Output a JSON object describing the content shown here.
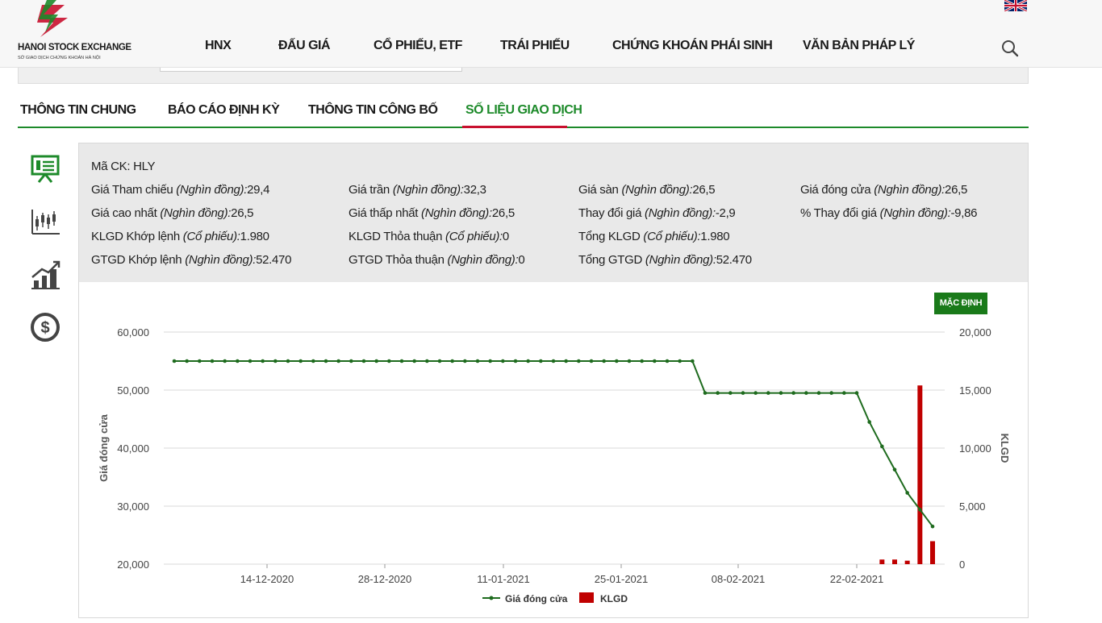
{
  "header": {
    "logo_name": "HANOI STOCK EXCHANGE",
    "logo_sub": "SỞ GIAO DỊCH CHỨNG KHOÁN HÀ NỘI",
    "nav": [
      "HNX",
      "ĐẤU GIÁ",
      "CỔ PHIẾU, ETF",
      "TRÁI PHIẾU",
      "CHỨNG KHOÁN PHÁI SINH",
      "VĂN BẢN PHÁP LÝ"
    ],
    "active_nav": "TRÁI PHIẾU",
    "language_flag": "uk-flag-icon",
    "search_icon": "search-icon"
  },
  "tabs": {
    "items": [
      "THÔNG TIN CHUNG",
      "BÁO CÁO ĐỊNH KỲ",
      "THÔNG TIN CÔNG BỐ",
      "SỐ LIỆU GIAO DỊCH"
    ],
    "active": "SỐ LIỆU GIAO DỊCH"
  },
  "side_icons": [
    "presentation-chart-icon",
    "candlestick-chart-icon",
    "bar-growth-chart-icon",
    "dollar-coin-icon"
  ],
  "info": {
    "ticker_label": "Mã CK:",
    "ticker": "HLY",
    "fields": [
      {
        "label": "Giá Tham chiếu",
        "unit": "(Nghìn đồng):",
        "value": "29,4"
      },
      {
        "label": "Giá trần",
        "unit": "(Nghìn đồng):",
        "value": "32,3"
      },
      {
        "label": "Giá sàn",
        "unit": "(Nghìn đồng):",
        "value": "26,5"
      },
      {
        "label": "Giá đóng cửa",
        "unit": "(Nghìn đồng):",
        "value": "26,5"
      },
      {
        "label": "Giá cao nhất",
        "unit": "(Nghìn đồng):",
        "value": "26,5"
      },
      {
        "label": "Giá thấp nhất",
        "unit": "(Nghìn đồng):",
        "value": "26,5"
      },
      {
        "label": "Thay đổi giá",
        "unit": "(Nghìn đồng):",
        "value": "-2,9"
      },
      {
        "label": "% Thay đổi giá",
        "unit": "(Nghìn đồng):",
        "value": "-9,86"
      },
      {
        "label": "KLGD Khớp lệnh",
        "unit": "(Cổ phiếu):",
        "value": "1.980"
      },
      {
        "label": "KLGD Thỏa thuận",
        "unit": "(Cổ phiếu):",
        "value": "0"
      },
      {
        "label": "Tổng KLGD",
        "unit": "(Cổ phiếu):",
        "value": "1.980"
      },
      {
        "label": "GTGD Khớp lệnh",
        "unit": "(Nghìn đồng):",
        "value": "52.470"
      },
      {
        "label": "GTGD Thỏa thuận",
        "unit": "(Nghìn đồng):",
        "value": "0"
      },
      {
        "label": "Tổng GTGD",
        "unit": "(Nghìn đồng):",
        "value": "52.470"
      }
    ]
  },
  "default_button": "MẶC ĐỊNH",
  "chart_data": {
    "type": "line",
    "ylabel": "Giá đóng cửa",
    "y2label": "KLGD",
    "ylim": [
      20000,
      60000
    ],
    "y2lim": [
      0,
      20000
    ],
    "yticks": [
      "60,000",
      "50,000",
      "40,000",
      "30,000",
      "20,000"
    ],
    "y2ticks": [
      "20,000",
      "15,000",
      "10,000",
      "5,000",
      "0"
    ],
    "xticks": [
      "14-12-2020",
      "28-12-2020",
      "11-01-2021",
      "25-01-2021",
      "08-02-2021",
      "22-02-2021"
    ],
    "grid": true,
    "legend": [
      "Giá đóng cửa",
      "KLGD"
    ],
    "legend_position": "bottom",
    "colors": {
      "line": "#1e6b1e",
      "bar": "#c00000"
    },
    "series": [
      {
        "name": "Giá đóng cửa",
        "values": [
          55000,
          55000,
          55000,
          55000,
          55000,
          55000,
          55000,
          55000,
          55000,
          55000,
          55000,
          55000,
          55000,
          55000,
          55000,
          55000,
          55000,
          55000,
          55000,
          55000,
          55000,
          55000,
          55000,
          55000,
          55000,
          55000,
          55000,
          55000,
          55000,
          55000,
          55000,
          55000,
          55000,
          55000,
          55000,
          55000,
          55000,
          55000,
          55000,
          55000,
          55000,
          55000,
          49500,
          49500,
          49500,
          49500,
          49500,
          49500,
          49500,
          49500,
          49500,
          49500,
          49500,
          49500,
          49500,
          44500,
          40300,
          36300,
          32300,
          29400,
          26500
        ]
      },
      {
        "name": "KLGD",
        "values": [
          0,
          0,
          0,
          0,
          0,
          0,
          0,
          0,
          0,
          0,
          0,
          0,
          0,
          0,
          0,
          0,
          0,
          0,
          0,
          0,
          0,
          0,
          0,
          0,
          0,
          0,
          0,
          0,
          0,
          0,
          0,
          0,
          0,
          0,
          0,
          0,
          0,
          0,
          0,
          0,
          0,
          0,
          0,
          0,
          0,
          0,
          0,
          0,
          0,
          0,
          0,
          0,
          0,
          0,
          0,
          0,
          400,
          400,
          300,
          15400,
          1980
        ]
      }
    ]
  }
}
